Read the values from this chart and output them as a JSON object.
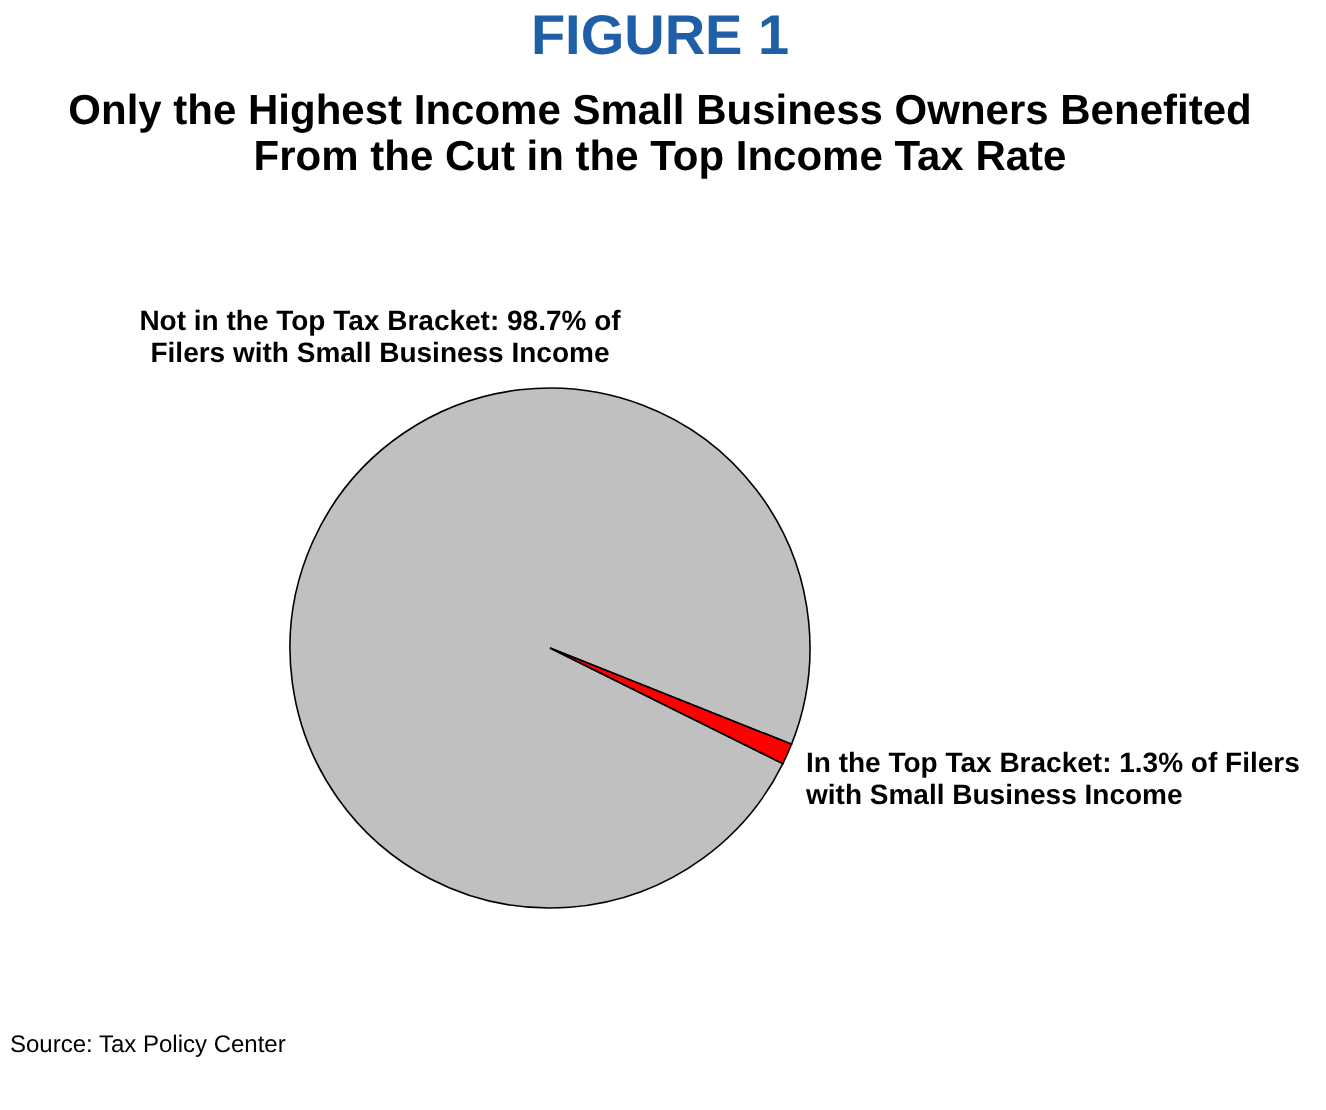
{
  "chart_data": {
    "type": "pie",
    "title": "FIGURE 1",
    "subtitle": "Only the Highest Income Small Business Owners Benefited\nFrom the Cut in the Top Income Tax Rate",
    "categories": [
      "Not in the Top Tax Bracket:  98.7% of\nFilers with Small Business Income",
      "In the Top Tax Bracket:  1.3% of Filers\nwith Small Business Income"
    ],
    "values": [
      98.7,
      1.3
    ],
    "colors": [
      "#c0c0c0",
      "#ff0000"
    ],
    "annotations": [
      "Source: Tax Policy Center"
    ]
  }
}
